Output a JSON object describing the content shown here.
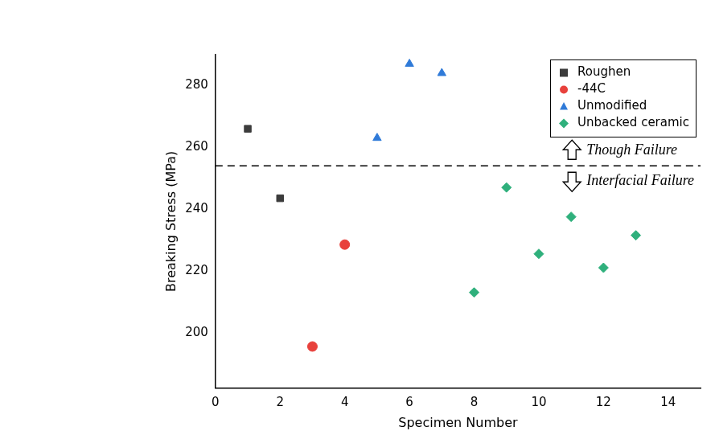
{
  "chart_data": {
    "type": "scatter",
    "x_label": "Specimen Number",
    "y_label": "Breaking Stress (MPa)",
    "xlim": [
      0,
      15
    ],
    "xticks": [
      0,
      2,
      4,
      6,
      8,
      10,
      12,
      14
    ],
    "ylim": [
      182,
      290
    ],
    "yticks": [
      200,
      220,
      240,
      260,
      280
    ],
    "grid": false,
    "legend": "upper right",
    "series": [
      {
        "name": "Roughen",
        "color": "#3c3c3c",
        "marker": "square",
        "x": [
          1,
          2
        ],
        "values": [
          266,
          243.5
        ]
      },
      {
        "name": "-44C",
        "color": "#e8413c",
        "marker": "circle",
        "x": [
          3,
          4
        ],
        "values": [
          195.5,
          228.5
        ]
      },
      {
        "name": "Unmodified",
        "color": "#2f7ad8",
        "marker": "triangle",
        "x": [
          5,
          6,
          7
        ],
        "values": [
          263,
          287,
          284
        ]
      },
      {
        "name": "Unbacked ceramic",
        "color": "#2fb07c",
        "marker": "diamond",
        "x": [
          8,
          9,
          10,
          11,
          12,
          13
        ],
        "values": [
          213,
          247,
          225.5,
          237.5,
          221,
          231.5
        ]
      }
    ],
    "reference_line": {
      "y": 254,
      "line_style": "dashed"
    },
    "annotations": [
      "Though Failure",
      "Interfacial Failure"
    ]
  }
}
